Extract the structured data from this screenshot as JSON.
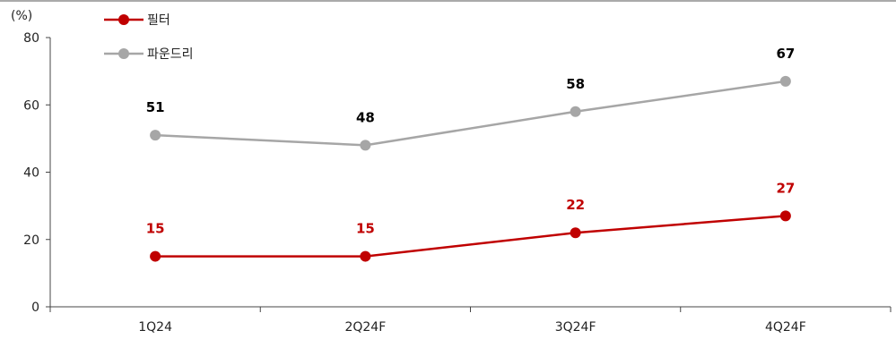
{
  "chart_data": {
    "type": "line",
    "title": "",
    "xlabel": "",
    "ylabel": "",
    "y_unit_label": "(%)",
    "ylim": [
      0,
      80
    ],
    "yticks": [
      0,
      20,
      40,
      60,
      80
    ],
    "categories": [
      "1Q24",
      "2Q24F",
      "3Q24F",
      "4Q24F"
    ],
    "grid": false,
    "legend_position": "top-left",
    "series": [
      {
        "name": "필터",
        "values": [
          15,
          15,
          22,
          27
        ],
        "color": "#c00000"
      },
      {
        "name": "파운드리",
        "values": [
          51,
          48,
          58,
          67
        ],
        "color": "#a6a6a6"
      }
    ],
    "data_label_colors": {
      "필터": "#c00000",
      "파운드리": "#000000"
    }
  }
}
